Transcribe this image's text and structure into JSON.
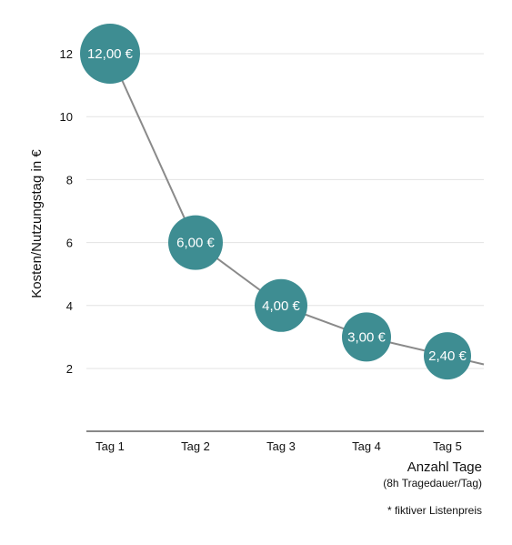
{
  "chart_data": {
    "type": "line",
    "categories": [
      "Tag 1",
      "Tag 2",
      "Tag 3",
      "Tag 4",
      "Tag 5"
    ],
    "values": [
      12.0,
      6.0,
      4.0,
      3.0,
      2.4
    ],
    "value_labels": [
      "12,00 €",
      "6,00 €",
      "4,00 €",
      "3,00 €",
      "2,40 €"
    ],
    "ylabel": "Kosten/Nutzungstag in €",
    "xlabel": "Anzahl Tage",
    "xlabel_sub": "(8h Tragedauer/Tag)",
    "footnote": "* fiktiver Listenpreis",
    "y_ticks": [
      2,
      4,
      6,
      8,
      10,
      12
    ],
    "ylim": [
      0,
      13
    ],
    "grid": true,
    "colors": {
      "marker": "#3e8d92",
      "line": "#8a8a8a",
      "grid": "#e3e3e3",
      "axis": "#888888"
    }
  }
}
